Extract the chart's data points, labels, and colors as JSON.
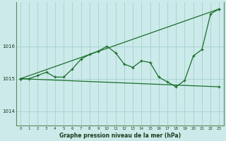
{
  "bg_color": "#cceaea",
  "grid_color": "#aad4d4",
  "line_color": "#1a6e2a",
  "title": "Graphe pression niveau de la mer (hPa)",
  "xlabel_ticks": [
    0,
    1,
    2,
    3,
    4,
    5,
    6,
    7,
    8,
    9,
    10,
    11,
    12,
    13,
    14,
    15,
    16,
    17,
    18,
    19,
    20,
    21,
    22,
    23
  ],
  "yticks": [
    1014,
    1015,
    1016
  ],
  "ylim": [
    1013.55,
    1017.35
  ],
  "xlim": [
    -0.5,
    23.5
  ],
  "series1_x": [
    0,
    1,
    2,
    3,
    4,
    5,
    6,
    7,
    8,
    9,
    10,
    11,
    12,
    13,
    14,
    15,
    16,
    17,
    18,
    19,
    20,
    21,
    22,
    23
  ],
  "series1_y": [
    1015.0,
    1015.0,
    1015.1,
    1015.2,
    1015.05,
    1015.05,
    1015.3,
    1015.6,
    1015.75,
    1015.85,
    1016.0,
    1015.8,
    1015.45,
    1015.35,
    1015.55,
    1015.5,
    1015.05,
    1014.9,
    1014.75,
    1014.95,
    1015.7,
    1015.9,
    1017.0,
    1017.15
  ],
  "series2_x": [
    0,
    23
  ],
  "series2_y": [
    1015.0,
    1017.15
  ],
  "series3_x": [
    0,
    23
  ],
  "series3_y": [
    1015.0,
    1014.75
  ],
  "spine_color": "#5a8a5a"
}
